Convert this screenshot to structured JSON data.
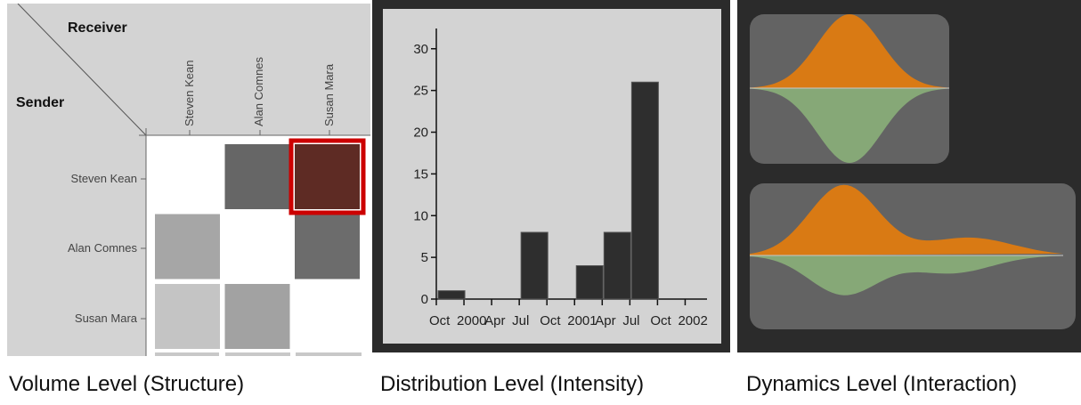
{
  "matrix": {
    "receiver_label": "Receiver",
    "sender_label": "Sender",
    "people": [
      "Steven Kean",
      "Alan Comnes",
      "Susan Mara"
    ],
    "cells": [
      [
        null,
        "#666666",
        "#5e2b24"
      ],
      [
        "#a6a6a6",
        null,
        "#6c6c6c"
      ],
      [
        "#c4c4c4",
        "#a2a2a2",
        null
      ]
    ],
    "highlight": {
      "row": 0,
      "col": 2,
      "color": "#cc0000"
    },
    "colors": {
      "background": "#d3d3d3",
      "matrix_bg": "#ffffff"
    }
  },
  "histogram": {
    "chart_data": {
      "type": "bar",
      "x_tick_labels": [
        "Oct",
        "2000",
        "Apr",
        "Jul",
        "Oct",
        "2001",
        "Apr",
        "Jul",
        "Oct",
        "2002"
      ],
      "bars": [
        {
          "month_index": 0,
          "value": 1
        },
        {
          "month_index": 9,
          "value": 8
        },
        {
          "month_index": 15,
          "value": 4
        },
        {
          "month_index": 18,
          "value": 8
        },
        {
          "month_index": 21,
          "value": 26
        }
      ],
      "y_ticks": [
        0,
        5,
        10,
        15,
        20,
        25,
        30
      ],
      "ylim": [
        0,
        32
      ],
      "bar_color": "#2e2e2e"
    },
    "colors": {
      "frame": "#2b2b2b",
      "plot_bg": "#d3d3d3"
    }
  },
  "dynamics": {
    "colors": {
      "background": "#2b2b2b",
      "card": "#636363",
      "top": "#d97a14",
      "bottom": "#86a877",
      "line": "#c8c8c8"
    }
  },
  "captions": {
    "volume": "Volume Level (Structure)",
    "distribution": "Distribution Level (Intensity)",
    "dynamics": "Dynamics Level (Interaction)"
  }
}
